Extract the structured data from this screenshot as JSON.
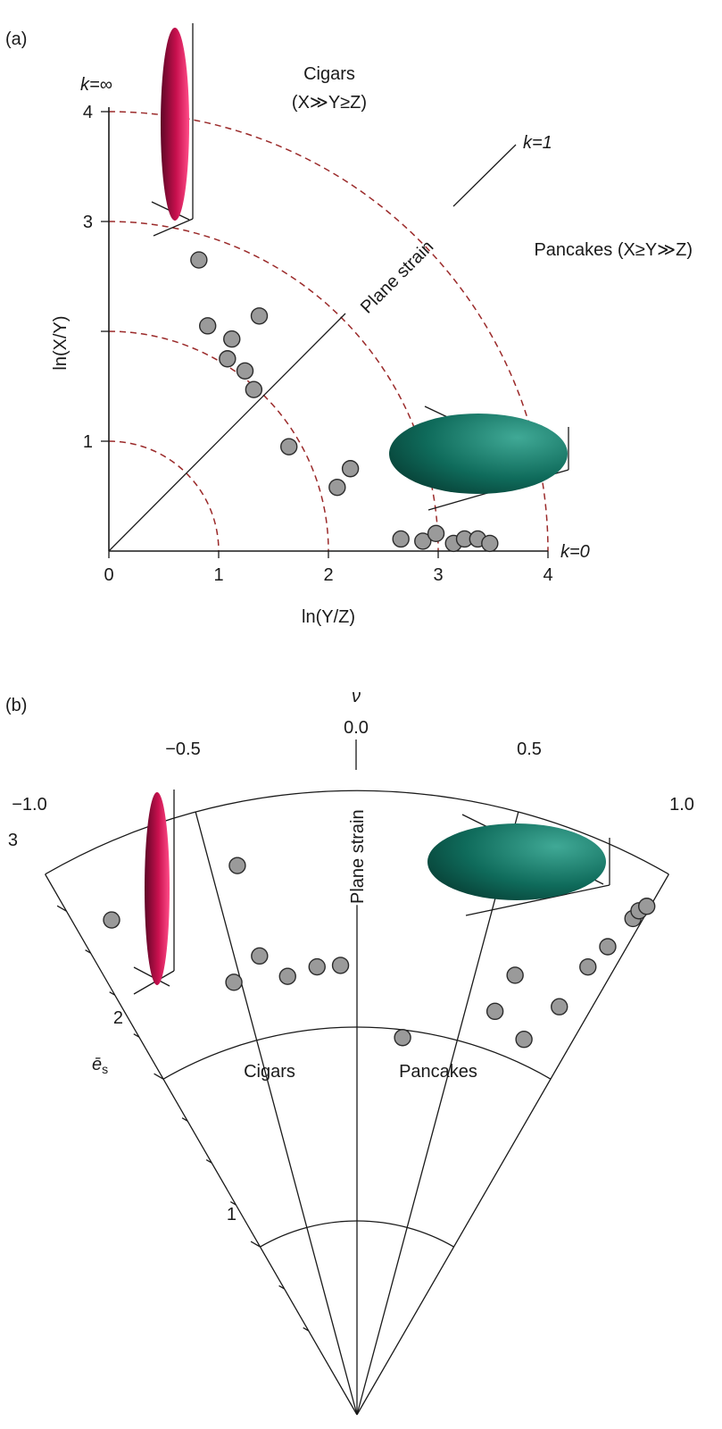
{
  "chart_data": [
    {
      "panel_label": "(a)",
      "type": "scatter",
      "xlabel": "ln(Y/Z)",
      "ylabel": "ln(X/Y)",
      "xlim": [
        0,
        4
      ],
      "ylim": [
        0,
        4
      ],
      "x_ticks": [
        "0",
        "1",
        "2",
        "3",
        "4"
      ],
      "y_ticks": [
        "1",
        "3",
        "4"
      ],
      "reference_circles_radius": [
        1,
        2,
        3,
        4
      ],
      "labels": {
        "k_inf": "k=∞",
        "k_one": "k=1",
        "k_zero": "k=0",
        "plane_strain": "Plane strain",
        "cigars": "Cigars",
        "cigars_def": "(X≫Y≥Z)",
        "pancakes": "Pancakes (X≥Y≫Z)"
      },
      "points": [
        {
          "x": 0.82,
          "y": 2.65
        },
        {
          "x": 0.9,
          "y": 2.05
        },
        {
          "x": 1.12,
          "y": 1.93
        },
        {
          "x": 1.37,
          "y": 2.14
        },
        {
          "x": 1.08,
          "y": 1.75
        },
        {
          "x": 1.24,
          "y": 1.64
        },
        {
          "x": 1.32,
          "y": 1.47
        },
        {
          "x": 1.64,
          "y": 0.95
        },
        {
          "x": 2.2,
          "y": 0.75
        },
        {
          "x": 2.08,
          "y": 0.58
        },
        {
          "x": 2.66,
          "y": 0.11
        },
        {
          "x": 2.86,
          "y": 0.09
        },
        {
          "x": 2.98,
          "y": 0.16
        },
        {
          "x": 3.14,
          "y": 0.07
        },
        {
          "x": 3.24,
          "y": 0.11
        },
        {
          "x": 3.36,
          "y": 0.11
        },
        {
          "x": 3.47,
          "y": 0.07
        }
      ]
    },
    {
      "panel_label": "(b)",
      "type": "scatter",
      "coordinate_system": "polar (Nadai/Hsu plot)",
      "angular_label": "ν",
      "radial_label": "ē",
      "radial_label_sub": "s",
      "nu_ticks": [
        "-1.0",
        "-0.5",
        "0.0",
        "0.5",
        "1.0"
      ],
      "nu_tick_labels": [
        "−1.0",
        "−0.5",
        "0.0",
        "0.5",
        "1.0"
      ],
      "es_ticks": [
        "1",
        "2",
        "3"
      ],
      "labels": {
        "plane_strain": "Plane strain",
        "cigars": "Cigars",
        "pancakes": "Pancakes"
      },
      "points": [
        {
          "nu": -0.88,
          "es": 2.85
        },
        {
          "nu": -0.41,
          "es": 2.9
        },
        {
          "nu": -0.53,
          "es": 2.32
        },
        {
          "nu": -0.4,
          "es": 2.42
        },
        {
          "nu": -0.3,
          "es": 2.29
        },
        {
          "nu": -0.17,
          "es": 2.32
        },
        {
          "nu": -0.07,
          "es": 2.32
        },
        {
          "nu": 0.23,
          "es": 1.96
        },
        {
          "nu": 0.63,
          "es": 2.2
        },
        {
          "nu": 0.8,
          "es": 2.12
        },
        {
          "nu": 0.66,
          "es": 2.41
        },
        {
          "nu": 0.88,
          "es": 2.35
        },
        {
          "nu": 0.91,
          "es": 2.6
        },
        {
          "nu": 0.94,
          "es": 2.74
        },
        {
          "nu": 0.97,
          "es": 2.93
        },
        {
          "nu": 0.975,
          "es": 2.98
        },
        {
          "nu": 0.99,
          "es": 3.02
        }
      ]
    }
  ]
}
